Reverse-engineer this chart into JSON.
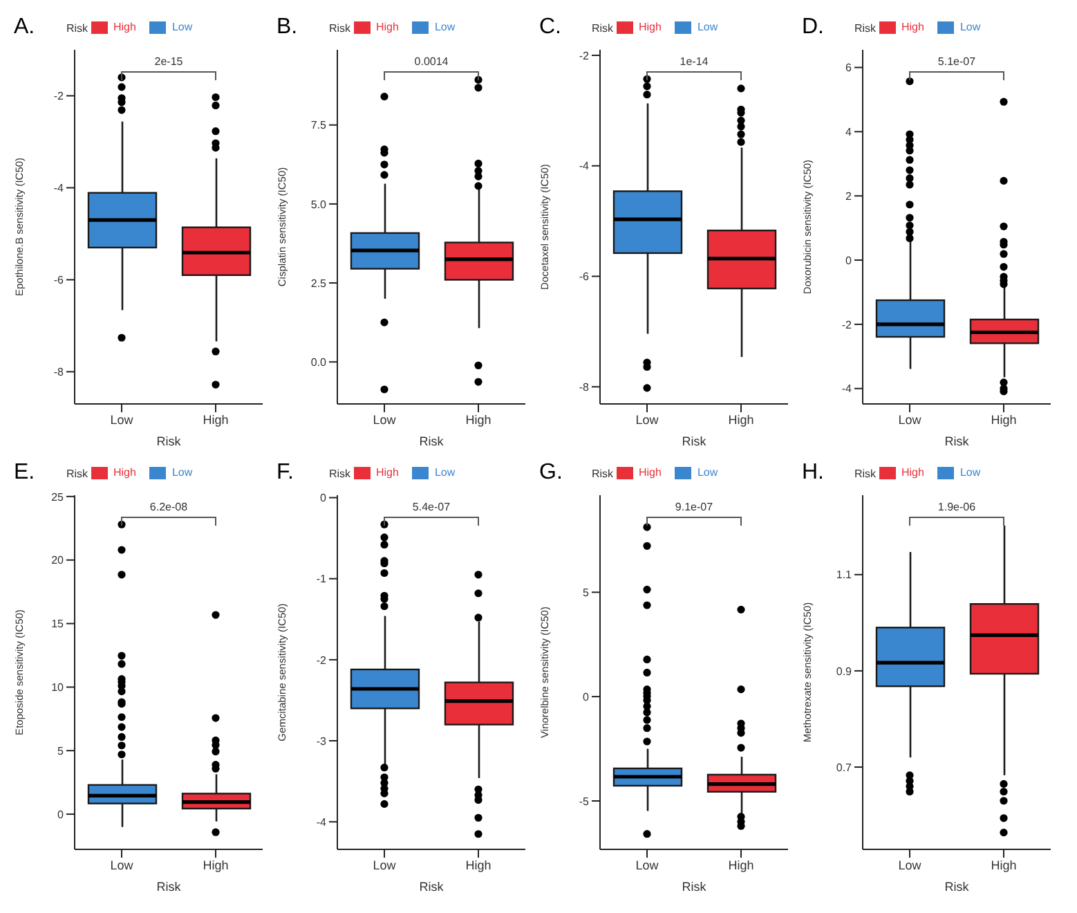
{
  "chart_data": [
    {
      "type": "box",
      "title": "A.",
      "xlabel": "Risk",
      "ylabel": "Epothilone.B sensitivity (IC50)",
      "legend_title": "Risk",
      "legend": "top",
      "categories": [
        "Low",
        "High"
      ],
      "ylim": [
        -8.7,
        -1.0
      ],
      "yticks": [
        -8,
        -6,
        -4,
        -2
      ],
      "annotations": [
        "2e-15"
      ],
      "series": [
        {
          "name": "Low",
          "color": "#3b87cf",
          "boxes": [
            {
              "low": -6.66,
              "q1": -5.3,
              "median": -4.7,
              "q3": -4.11,
              "high": -2.56,
              "outliers": [
                -1.6,
                -1.81,
                -2.05,
                -2.14,
                -2.31,
                -7.26
              ]
            },
            null
          ]
        },
        {
          "name": "High",
          "color": "#e9303a",
          "boxes": [
            null,
            {
              "low": -7.34,
              "q1": -5.9,
              "median": -5.41,
              "q3": -4.86,
              "high": -3.36,
              "outliers": [
                -2.03,
                -2.21,
                -2.77,
                -3.03,
                -3.13,
                -7.56,
                -8.28
              ]
            }
          ]
        }
      ]
    },
    {
      "type": "box",
      "title": "B.",
      "xlabel": "Risk",
      "ylabel": "Cisplatin sensitivity (IC50)",
      "legend_title": "Risk",
      "legend": "top",
      "categories": [
        "Low",
        "High"
      ],
      "ylim": [
        -1.33,
        9.88
      ],
      "yticks": [
        {
          "value": 0,
          "label": "0.0"
        },
        {
          "value": 2.5,
          "label": "2.5"
        },
        {
          "value": 5,
          "label": "5.0"
        },
        {
          "value": 7.5,
          "label": "7.5"
        }
      ],
      "annotations": [
        "0.0014"
      ],
      "series": [
        {
          "name": "Low",
          "color": "#3b87cf",
          "boxes": [
            {
              "low": 2.0,
              "q1": 2.95,
              "median": 3.53,
              "q3": 4.08,
              "high": 5.64,
              "outliers": [
                8.4,
                6.73,
                6.62,
                6.25,
                5.92,
                1.25,
                -0.87
              ]
            },
            null
          ]
        },
        {
          "name": "High",
          "color": "#e9303a",
          "boxes": [
            null,
            {
              "low": 1.07,
              "q1": 2.6,
              "median": 3.25,
              "q3": 3.78,
              "high": 5.5,
              "outliers": [
                8.93,
                8.68,
                6.28,
                6.05,
                5.87,
                5.57,
                -0.11,
                -0.63
              ]
            }
          ]
        }
      ]
    },
    {
      "type": "box",
      "title": "C.",
      "xlabel": "Risk",
      "ylabel": "Docetaxel sensitivity (IC50)",
      "legend_title": "Risk",
      "legend": "top",
      "categories": [
        "Low",
        "High"
      ],
      "ylim": [
        -8.31,
        -1.9
      ],
      "yticks": [
        -8,
        -6,
        -4,
        -2
      ],
      "annotations": [
        "1e-14"
      ],
      "series": [
        {
          "name": "Low",
          "color": "#3b87cf",
          "boxes": [
            {
              "low": -7.04,
              "q1": -5.58,
              "median": -4.97,
              "q3": -4.46,
              "high": -2.87,
              "outliers": [
                -2.43,
                -2.56,
                -2.71,
                -7.56,
                -7.64,
                -8.02
              ]
            },
            null
          ]
        },
        {
          "name": "High",
          "color": "#e9303a",
          "boxes": [
            null,
            {
              "low": -7.46,
              "q1": -6.22,
              "median": -5.68,
              "q3": -5.17,
              "high": -3.67,
              "outliers": [
                -2.6,
                -2.98,
                -3.04,
                -3.18,
                -3.29,
                -3.43,
                -3.57
              ]
            }
          ]
        }
      ]
    },
    {
      "type": "box",
      "title": "D.",
      "xlabel": "Risk",
      "ylabel": "Doxorubicin sensitivity (IC50)",
      "legend_title": "Risk",
      "legend": "top",
      "categories": [
        "Low",
        "High"
      ],
      "ylim": [
        -4.48,
        6.55
      ],
      "yticks": [
        -4,
        -2,
        0,
        2,
        4,
        6
      ],
      "annotations": [
        "5.1e-07"
      ],
      "series": [
        {
          "name": "Low",
          "color": "#3b87cf",
          "boxes": [
            {
              "low": -3.39,
              "q1": -2.39,
              "median": -2.0,
              "q3": -1.25,
              "high": 0.61,
              "outliers": [
                5.57,
                3.92,
                3.75,
                3.57,
                3.41,
                3.12,
                2.8,
                2.55,
                2.35,
                1.73,
                1.32,
                1.08,
                0.88,
                0.68
              ]
            },
            null
          ]
        },
        {
          "name": "High",
          "color": "#e9303a",
          "boxes": [
            null,
            {
              "low": -3.65,
              "q1": -2.59,
              "median": -2.25,
              "q3": -1.85,
              "high": -0.8,
              "outliers": [
                4.93,
                2.47,
                1.05,
                0.57,
                0.48,
                0.19,
                -0.21,
                -0.52,
                -0.64,
                -0.75,
                -3.81,
                -4.0,
                -4.09
              ]
            }
          ]
        }
      ]
    },
    {
      "type": "box",
      "title": "E.",
      "xlabel": "Risk",
      "ylabel": "Etoposide sensitivity (IC50)",
      "legend_title": "Risk",
      "legend": "top",
      "categories": [
        "Low",
        "High"
      ],
      "ylim": [
        -2.77,
        25.1
      ],
      "yticks": [
        0,
        5,
        10,
        15,
        20,
        25
      ],
      "annotations": [
        "6.2e-08"
      ],
      "series": [
        {
          "name": "Low",
          "color": "#3b87cf",
          "boxes": [
            {
              "low": -1.01,
              "q1": 0.84,
              "median": 1.45,
              "q3": 2.3,
              "high": 4.3,
              "outliers": [
                22.8,
                20.8,
                18.85,
                12.47,
                11.82,
                10.64,
                10.4,
                10.1,
                9.66,
                8.82,
                8.68,
                7.64,
                6.86,
                6.08,
                5.41,
                4.7
              ]
            },
            null
          ]
        },
        {
          "name": "High",
          "color": "#e9303a",
          "boxes": [
            null,
            {
              "low": -0.57,
              "q1": 0.44,
              "median": 0.95,
              "q3": 1.62,
              "high": 3.14,
              "outliers": [
                15.68,
                7.57,
                5.81,
                5.44,
                4.93,
                3.89,
                3.58,
                -1.42
              ]
            }
          ]
        }
      ]
    },
    {
      "type": "box",
      "title": "F.",
      "xlabel": "Risk",
      "ylabel": "Gemcitabine sensitivity (IC50)",
      "legend_title": "Risk",
      "legend": "top",
      "categories": [
        "Low",
        "High"
      ],
      "ylim": [
        -4.34,
        0.03
      ],
      "yticks": [
        -4,
        -3,
        -2,
        -1,
        0
      ],
      "annotations": [
        "5.4e-07"
      ],
      "series": [
        {
          "name": "Low",
          "color": "#3b87cf",
          "boxes": [
            {
              "low": -3.29,
              "q1": -2.6,
              "median": -2.36,
              "q3": -2.12,
              "high": -1.46,
              "outliers": [
                -0.33,
                -0.49,
                -0.58,
                -0.78,
                -0.81,
                -0.93,
                -1.21,
                -1.25,
                -1.34,
                -3.33,
                -3.45,
                -3.52,
                -3.59,
                -3.65,
                -3.78
              ]
            },
            null
          ]
        },
        {
          "name": "High",
          "color": "#e9303a",
          "boxes": [
            null,
            {
              "low": -3.46,
              "q1": -2.8,
              "median": -2.51,
              "q3": -2.28,
              "high": -1.53,
              "outliers": [
                -0.95,
                -1.18,
                -1.48,
                -3.6,
                -3.67,
                -3.73,
                -3.95,
                -4.15
              ]
            }
          ]
        }
      ]
    },
    {
      "type": "box",
      "title": "G.",
      "xlabel": "Risk",
      "ylabel": "Vinorelbine sensitivity (IC50)",
      "legend_title": "Risk",
      "legend": "top",
      "categories": [
        "Low",
        "High"
      ],
      "ylim": [
        -7.32,
        9.65
      ],
      "yticks": [
        -5,
        0,
        5
      ],
      "annotations": [
        "9.1e-07"
      ],
      "series": [
        {
          "name": "Low",
          "color": "#3b87cf",
          "boxes": [
            {
              "low": -5.48,
              "q1": -4.27,
              "median": -3.84,
              "q3": -3.44,
              "high": -2.5,
              "outliers": [
                8.12,
                7.22,
                5.13,
                4.38,
                1.78,
                1.15,
                0.35,
                0.18,
                0.02,
                -0.18,
                -0.47,
                -0.76,
                -1.12,
                -1.51,
                -2.15,
                -6.58
              ]
            },
            null
          ]
        },
        {
          "name": "High",
          "color": "#e9303a",
          "boxes": [
            null,
            {
              "low": -5.58,
              "q1": -4.56,
              "median": -4.19,
              "q3": -3.74,
              "high": -2.88,
              "outliers": [
                4.17,
                0.35,
                -1.29,
                -1.51,
                -1.74,
                -2.45,
                -5.75,
                -5.99,
                -6.2
              ]
            }
          ]
        }
      ]
    },
    {
      "type": "box",
      "title": "H.",
      "xlabel": "Risk",
      "ylabel": "Methotrexate sensitivity (IC50)",
      "legend_title": "Risk",
      "legend": "top",
      "categories": [
        "Low",
        "High"
      ],
      "ylim": [
        0.529,
        1.265
      ],
      "yticks": [
        0.7,
        0.9,
        1.1
      ],
      "annotations": [
        "1.9e-06"
      ],
      "series": [
        {
          "name": "Low",
          "color": "#3b87cf",
          "boxes": [
            {
              "low": 0.72,
              "q1": 0.868,
              "median": 0.917,
              "q3": 0.99,
              "high": 1.147,
              "outliers": [
                0.683,
                0.671,
                0.66,
                0.649
              ]
            },
            null
          ]
        },
        {
          "name": "High",
          "color": "#e9303a",
          "boxes": [
            null,
            {
              "low": 0.683,
              "q1": 0.894,
              "median": 0.974,
              "q3": 1.039,
              "high": 1.202,
              "outliers": [
                0.665,
                0.649,
                0.63,
                0.594,
                0.564
              ]
            }
          ]
        }
      ]
    }
  ]
}
